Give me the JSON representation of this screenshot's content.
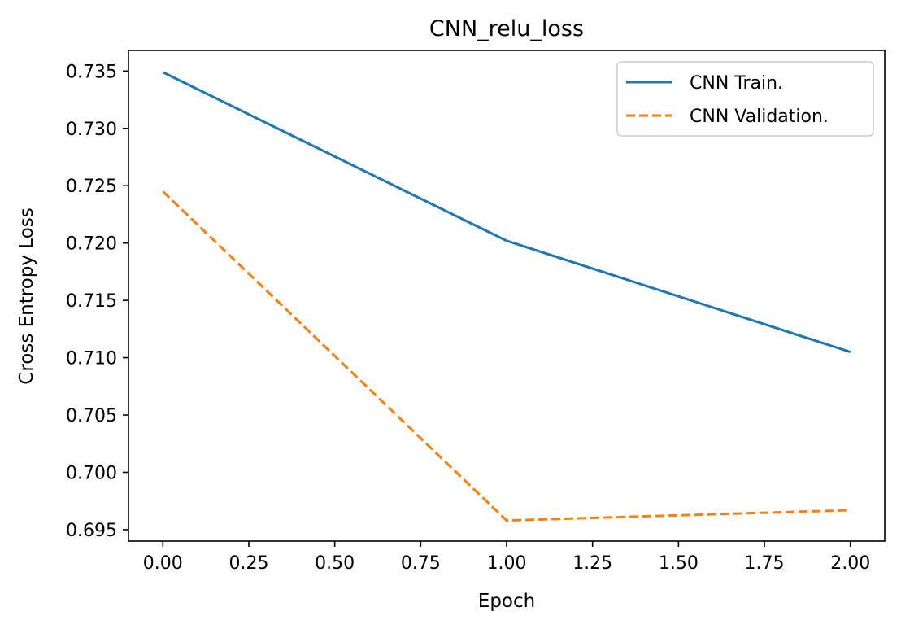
{
  "chart_data": {
    "type": "line",
    "title": "CNN_relu_loss",
    "xlabel": "Epoch",
    "ylabel": "Cross Entropy Loss",
    "xlim": [
      -0.1,
      2.1
    ],
    "ylim": [
      0.694,
      0.7368
    ],
    "x_ticks": [
      0.0,
      0.25,
      0.5,
      0.75,
      1.0,
      1.25,
      1.5,
      1.75,
      2.0
    ],
    "x_tick_labels": [
      "0.00",
      "0.25",
      "0.50",
      "0.75",
      "1.00",
      "1.25",
      "1.50",
      "1.75",
      "2.00"
    ],
    "y_ticks": [
      0.695,
      0.7,
      0.705,
      0.71,
      0.715,
      0.72,
      0.725,
      0.73,
      0.735
    ],
    "y_tick_labels": [
      "0.695",
      "0.700",
      "0.705",
      "0.710",
      "0.715",
      "0.720",
      "0.725",
      "0.730",
      "0.735"
    ],
    "x": [
      0,
      1,
      2
    ],
    "series": [
      {
        "name": "CNN Train.",
        "values": [
          0.7349,
          0.7202,
          0.7105
        ],
        "color": "#1f77b4",
        "style": "solid"
      },
      {
        "name": "CNN Validation.",
        "values": [
          0.7245,
          0.6958,
          0.6967
        ],
        "color": "#ff7f0e",
        "style": "dashed"
      }
    ],
    "legend_position": "top-right",
    "grid": false
  }
}
